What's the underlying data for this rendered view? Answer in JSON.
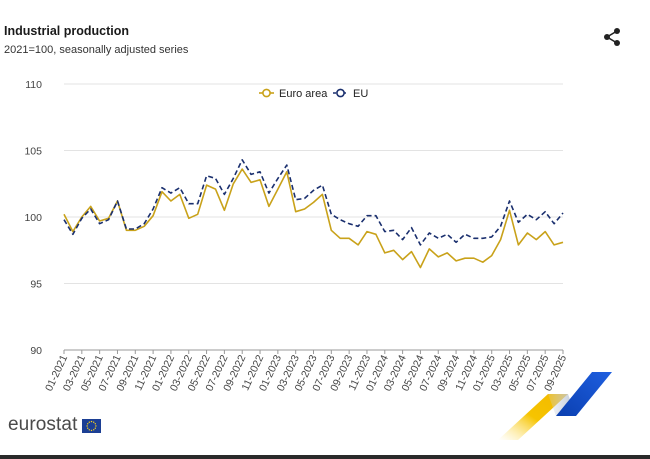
{
  "header": {
    "title": "Industrial production",
    "subtitle": "2021=100, seasonally adjusted series",
    "share_icon": "share-icon"
  },
  "brand": {
    "name": "eurostat",
    "flag_icon": "eu-flag-icon"
  },
  "colors": {
    "euro_area": "#c9a21a",
    "eu": "#1a2f6e",
    "grid": "#e3e3e3"
  },
  "chart_data": {
    "type": "line",
    "title": "Industrial production",
    "subtitle": "2021=100, seasonally adjusted series",
    "xlabel": "",
    "ylabel": "",
    "ylim": [
      90,
      110
    ],
    "yticks": [
      90,
      95,
      100,
      105,
      110
    ],
    "grid": true,
    "legend_position": "top-center",
    "x": [
      "01-2021",
      "02-2021",
      "03-2021",
      "04-2021",
      "05-2021",
      "06-2021",
      "07-2021",
      "08-2021",
      "09-2021",
      "10-2021",
      "11-2021",
      "12-2021",
      "01-2022",
      "02-2022",
      "03-2022",
      "04-2022",
      "05-2022",
      "06-2022",
      "07-2022",
      "08-2022",
      "09-2022",
      "10-2022",
      "11-2022",
      "12-2022",
      "01-2023",
      "02-2023",
      "03-2023",
      "04-2023",
      "05-2023",
      "06-2023",
      "07-2023",
      "08-2023",
      "09-2023",
      "10-2023",
      "11-2023",
      "12-2023",
      "01-2024",
      "02-2024",
      "03-2024",
      "04-2024",
      "05-2024",
      "06-2024",
      "07-2024",
      "08-2024",
      "09-2024",
      "10-2024",
      "11-2024",
      "12-2024",
      "01-2025",
      "02-2025",
      "03-2025",
      "04-2025",
      "05-2025",
      "06-2025",
      "07-2025",
      "08-2025",
      "09-2025"
    ],
    "xtick_labels": [
      "01-2021",
      "03-2021",
      "05-2021",
      "07-2021",
      "09-2021",
      "11-2021",
      "01-2022",
      "03-2022",
      "05-2022",
      "07-2022",
      "09-2022",
      "11-2022",
      "01-2023",
      "03-2023",
      "05-2023",
      "07-2023",
      "09-2023",
      "11-2023",
      "01-2024",
      "03-2024",
      "05-2024",
      "07-2024",
      "09-2024",
      "11-2024",
      "01-2025",
      "03-2025",
      "05-2025",
      "07-2025",
      "09-2025"
    ],
    "series": [
      {
        "name": "Euro area",
        "style": "solid",
        "values": [
          100.2,
          98.9,
          100.0,
          100.8,
          99.7,
          99.9,
          101.2,
          99.0,
          99.0,
          99.3,
          100.1,
          101.9,
          101.2,
          101.7,
          99.9,
          100.2,
          102.4,
          102.1,
          100.5,
          102.5,
          103.6,
          102.6,
          102.8,
          100.8,
          102.1,
          103.4,
          100.4,
          100.6,
          101.1,
          101.7,
          99.0,
          98.4,
          98.4,
          97.9,
          98.9,
          98.7,
          97.3,
          97.5,
          96.8,
          97.4,
          96.2,
          97.6,
          97.0,
          97.3,
          96.7,
          96.9,
          96.9,
          96.6,
          97.1,
          98.3,
          100.5,
          97.9,
          98.8,
          98.3,
          98.9,
          97.9,
          98.1
        ]
      },
      {
        "name": "EU",
        "style": "dashed",
        "values": [
          99.8,
          98.7,
          99.9,
          100.6,
          99.5,
          99.8,
          101.2,
          99.1,
          99.1,
          99.5,
          100.6,
          102.2,
          101.8,
          102.2,
          101.0,
          101.0,
          103.1,
          102.9,
          101.7,
          102.9,
          104.3,
          103.2,
          103.4,
          101.8,
          102.9,
          103.9,
          101.3,
          101.4,
          102.0,
          102.4,
          100.2,
          99.8,
          99.5,
          99.3,
          100.1,
          100.1,
          98.9,
          99.0,
          98.3,
          99.2,
          97.9,
          98.8,
          98.4,
          98.7,
          98.1,
          98.7,
          98.4,
          98.4,
          98.5,
          99.3,
          101.2,
          99.6,
          100.2,
          99.8,
          100.4,
          99.5,
          100.3
        ]
      }
    ]
  }
}
